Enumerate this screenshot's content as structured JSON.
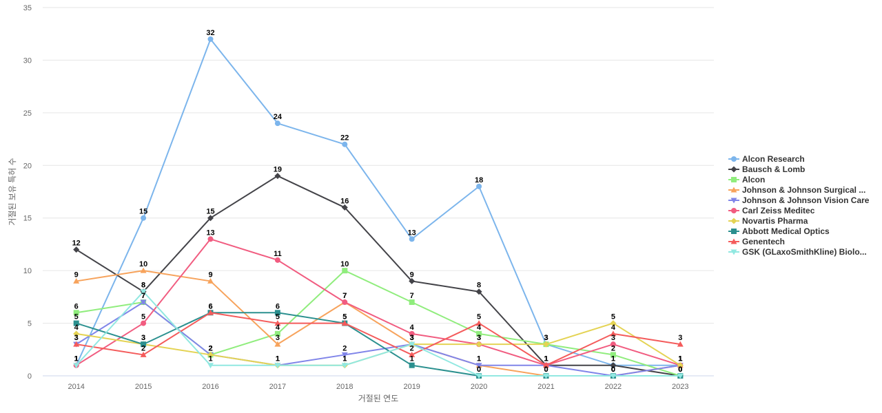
{
  "chart_data": {
    "type": "line",
    "title": "",
    "xlabel": "거절된 연도",
    "ylabel": "거절된 보유 특허 수",
    "ylim": [
      0,
      35
    ],
    "yticks": [
      0,
      5,
      10,
      15,
      20,
      25,
      30,
      35
    ],
    "grid": true,
    "legend_position": "right",
    "categories": [
      "2014",
      "2015",
      "2016",
      "2017",
      "2018",
      "2019",
      "2020",
      "2021",
      "2022",
      "2023"
    ],
    "series": [
      {
        "name": "Alcon Research",
        "color": "#7cb5ec",
        "marker": "circle",
        "values": [
          1,
          15,
          32,
          24,
          22,
          13,
          18,
          3,
          1,
          1
        ]
      },
      {
        "name": "Bausch & Lomb",
        "color": "#434348",
        "marker": "diamond",
        "values": [
          12,
          8,
          15,
          19,
          16,
          9,
          8,
          1,
          1,
          0
        ]
      },
      {
        "name": "Alcon",
        "color": "#90ed7d",
        "marker": "square",
        "values": [
          6,
          7,
          2,
          4,
          10,
          7,
          4,
          3,
          2,
          0
        ]
      },
      {
        "name": "Johnson & Johnson Surgical ...",
        "color": "#f7a35c",
        "marker": "triangle",
        "values": [
          9,
          10,
          9,
          3,
          7,
          3,
          1,
          0,
          0,
          1
        ]
      },
      {
        "name": "Johnson & Johnson Vision Care",
        "color": "#8085e9",
        "marker": "triangle-down",
        "values": [
          3,
          7,
          2,
          1,
          2,
          3,
          1,
          1,
          0,
          1
        ]
      },
      {
        "name": "Carl Zeiss Meditec",
        "color": "#f15c80",
        "marker": "circle",
        "values": [
          1,
          5,
          13,
          11,
          7,
          4,
          3,
          1,
          3,
          1
        ]
      },
      {
        "name": "Novartis Pharma",
        "color": "#e4d354",
        "marker": "diamond",
        "values": [
          4,
          3,
          2,
          1,
          1,
          3,
          3,
          3,
          5,
          1
        ]
      },
      {
        "name": "Abbott Medical Optics",
        "color": "#2b908f",
        "marker": "square",
        "values": [
          5,
          3,
          6,
          6,
          5,
          1,
          0,
          0,
          0,
          0
        ]
      },
      {
        "name": "Genentech",
        "color": "#f45b5b",
        "marker": "triangle",
        "values": [
          3,
          2,
          6,
          5,
          5,
          2,
          5,
          1,
          4,
          3
        ]
      },
      {
        "name": "GSK (GLaxoSmithKline) Biolo...",
        "color": "#91e8e1",
        "marker": "triangle-down",
        "values": [
          1,
          8,
          1,
          1,
          1,
          3,
          0,
          0,
          0,
          0
        ]
      }
    ]
  }
}
